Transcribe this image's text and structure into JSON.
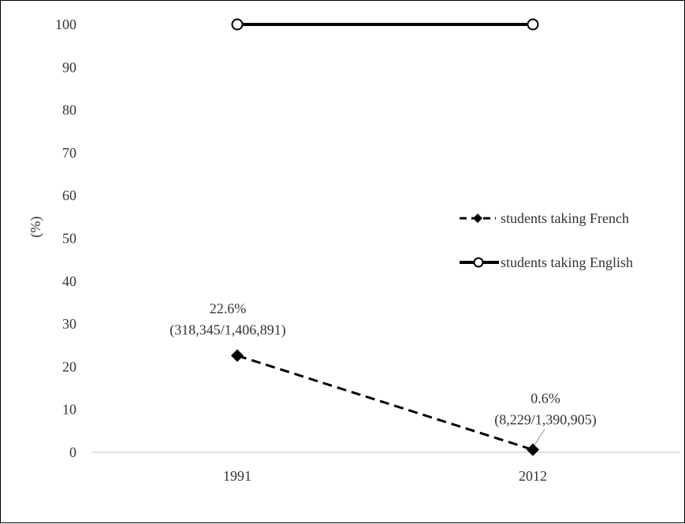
{
  "chart_data": {
    "type": "line",
    "title": "",
    "xlabel": "",
    "ylabel": "(%)",
    "categories": [
      "1991",
      "2012"
    ],
    "ylim": [
      0,
      100
    ],
    "yticks": [
      "0",
      "10",
      "20",
      "30",
      "40",
      "50",
      "60",
      "70",
      "80",
      "90",
      "100"
    ],
    "grid": false,
    "legend_position": "right",
    "series": [
      {
        "name": "students taking French",
        "values": [
          22.6,
          0.6
        ],
        "style": "dashed",
        "marker": "filled-diamond",
        "color": "#000000",
        "labels": [
          {
            "line1": "22.6%",
            "line2": "(318,345/1,406,891)"
          },
          {
            "line1": "0.6%",
            "line2": "(8,229/1,390,905)"
          }
        ]
      },
      {
        "name": "students taking English",
        "values": [
          100,
          100
        ],
        "style": "solid",
        "marker": "open-circle",
        "color": "#000000"
      }
    ]
  }
}
